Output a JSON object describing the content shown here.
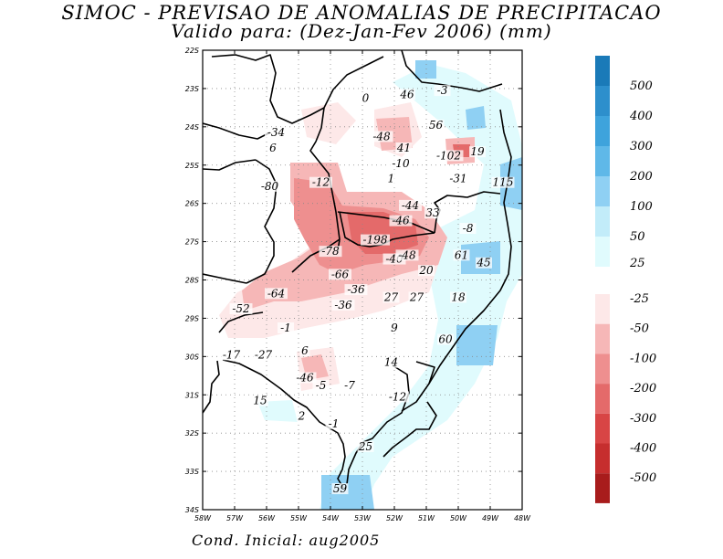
{
  "title_line1": "SIMOC - PREVISAO DE ANOMALIAS DE PRECIPITACAO",
  "title_line2": "Valido para: (Dez-Jan-Fev 2006) (mm)",
  "footer": "Cond. Inicial: aug2005",
  "map": {
    "lon_range": [
      -58,
      -48
    ],
    "lat_range": [
      -34,
      -22
    ],
    "grid": "dotted",
    "lon_ticks": [
      {
        "value": -58,
        "label": "58W"
      },
      {
        "value": -57,
        "label": "57W"
      },
      {
        "value": -56,
        "label": "56W"
      },
      {
        "value": -55,
        "label": "55W"
      },
      {
        "value": -54,
        "label": "54W"
      },
      {
        "value": -53,
        "label": "53W"
      },
      {
        "value": -52,
        "label": "52W"
      },
      {
        "value": -51,
        "label": "51W"
      },
      {
        "value": -50,
        "label": "50W"
      },
      {
        "value": -49,
        "label": "49W"
      },
      {
        "value": -48,
        "label": "48W"
      }
    ],
    "lat_ticks": [
      {
        "value": -22,
        "label": "22S"
      },
      {
        "value": -23,
        "label": "23S"
      },
      {
        "value": -24,
        "label": "24S"
      },
      {
        "value": -25,
        "label": "25S"
      },
      {
        "value": -26,
        "label": "26S"
      },
      {
        "value": -27,
        "label": "27S"
      },
      {
        "value": -28,
        "label": "28S"
      },
      {
        "value": -29,
        "label": "29S"
      },
      {
        "value": -30,
        "label": "30S"
      },
      {
        "value": -31,
        "label": "31S"
      },
      {
        "value": -32,
        "label": "32S"
      },
      {
        "value": -33,
        "label": "33S"
      },
      {
        "value": -34,
        "label": "34S"
      }
    ],
    "values": [
      {
        "lon": -52.9,
        "lat": -23.3,
        "text": "0"
      },
      {
        "lon": -51.6,
        "lat": -23.2,
        "text": "46"
      },
      {
        "lon": -50.5,
        "lat": -23.1,
        "text": "-3"
      },
      {
        "lon": -50.7,
        "lat": -24.0,
        "text": "56"
      },
      {
        "lon": -55.7,
        "lat": -24.2,
        "text": "-34"
      },
      {
        "lon": -55.8,
        "lat": -24.6,
        "text": "6"
      },
      {
        "lon": -52.4,
        "lat": -24.3,
        "text": "-48"
      },
      {
        "lon": -51.7,
        "lat": -24.6,
        "text": "41"
      },
      {
        "lon": -50.3,
        "lat": -24.8,
        "text": "-102"
      },
      {
        "lon": -49.4,
        "lat": -24.7,
        "text": "19"
      },
      {
        "lon": -51.8,
        "lat": -25.0,
        "text": "-10"
      },
      {
        "lon": -54.3,
        "lat": -25.5,
        "text": "-12"
      },
      {
        "lon": -52.1,
        "lat": -25.4,
        "text": "1"
      },
      {
        "lon": -50.0,
        "lat": -25.4,
        "text": "-31"
      },
      {
        "lon": -48.6,
        "lat": -25.5,
        "text": "115"
      },
      {
        "lon": -55.9,
        "lat": -25.6,
        "text": "-80"
      },
      {
        "lon": -51.5,
        "lat": -26.1,
        "text": "-44"
      },
      {
        "lon": -50.8,
        "lat": -26.3,
        "text": "33"
      },
      {
        "lon": -51.8,
        "lat": -26.5,
        "text": "-46"
      },
      {
        "lon": -49.7,
        "lat": -26.7,
        "text": "-8"
      },
      {
        "lon": -52.6,
        "lat": -27.0,
        "text": "-198"
      },
      {
        "lon": -54.0,
        "lat": -27.3,
        "text": "-78"
      },
      {
        "lon": -52.0,
        "lat": -27.5,
        "text": "-40"
      },
      {
        "lon": -51.6,
        "lat": -27.4,
        "text": "-48"
      },
      {
        "lon": -49.9,
        "lat": -27.4,
        "text": "61"
      },
      {
        "lon": -49.2,
        "lat": -27.6,
        "text": "45"
      },
      {
        "lon": -51.0,
        "lat": -27.8,
        "text": "20"
      },
      {
        "lon": -53.7,
        "lat": -27.9,
        "text": "-66"
      },
      {
        "lon": -55.7,
        "lat": -28.4,
        "text": "-64"
      },
      {
        "lon": -53.2,
        "lat": -28.3,
        "text": "-36"
      },
      {
        "lon": -53.6,
        "lat": -28.7,
        "text": "-36"
      },
      {
        "lon": -52.1,
        "lat": -28.5,
        "text": "27"
      },
      {
        "lon": -51.3,
        "lat": -28.5,
        "text": "27"
      },
      {
        "lon": -50.0,
        "lat": -28.5,
        "text": "18"
      },
      {
        "lon": -56.8,
        "lat": -28.8,
        "text": "-52"
      },
      {
        "lon": -55.4,
        "lat": -29.3,
        "text": "-1"
      },
      {
        "lon": -52.0,
        "lat": -29.3,
        "text": "9"
      },
      {
        "lon": -50.4,
        "lat": -29.6,
        "text": "60"
      },
      {
        "lon": -54.8,
        "lat": -29.9,
        "text": "6"
      },
      {
        "lon": -57.1,
        "lat": -30.0,
        "text": "-17"
      },
      {
        "lon": -56.1,
        "lat": -30.0,
        "text": "-27"
      },
      {
        "lon": -52.1,
        "lat": -30.2,
        "text": "14"
      },
      {
        "lon": -54.8,
        "lat": -30.6,
        "text": "-46"
      },
      {
        "lon": -54.3,
        "lat": -30.8,
        "text": "-5"
      },
      {
        "lon": -53.4,
        "lat": -30.8,
        "text": "-7"
      },
      {
        "lon": -51.9,
        "lat": -31.1,
        "text": "-12"
      },
      {
        "lon": -56.2,
        "lat": -31.2,
        "text": "15"
      },
      {
        "lon": -54.9,
        "lat": -31.6,
        "text": "2"
      },
      {
        "lon": -53.9,
        "lat": -31.8,
        "text": "-1"
      },
      {
        "lon": -52.9,
        "lat": -32.4,
        "text": "25"
      },
      {
        "lon": -53.7,
        "lat": -33.5,
        "text": "59"
      }
    ]
  },
  "colorbar_positive": {
    "labels": [
      "500",
      "400",
      "300",
      "200",
      "100",
      "50",
      "25"
    ],
    "colors": [
      "#1a7ab8",
      "#2d8fcc",
      "#3ea3dc",
      "#5fb8e8",
      "#8fd0f3",
      "#c2ecf9",
      "#e0fbfd"
    ]
  },
  "colorbar_negative": {
    "labels": [
      "-25",
      "-50",
      "-100",
      "-200",
      "-300",
      "-400",
      "-500"
    ],
    "colors": [
      "#fde8e8",
      "#f6b7b7",
      "#ee8f8f",
      "#e46a6a",
      "#d84545",
      "#c62e2e",
      "#a81c1c"
    ]
  },
  "shade_colors": {
    "pos_light": "#e0fbfd",
    "pos_mid": "#c2ecf9",
    "pos_blue": "#8fd0f3",
    "pos_strong": "#5fb8e8",
    "neg_light": "#fde8e8",
    "neg_mid": "#f6b7b7",
    "neg_strong": "#ee8f8f",
    "neg_dark": "#e46a6a"
  }
}
